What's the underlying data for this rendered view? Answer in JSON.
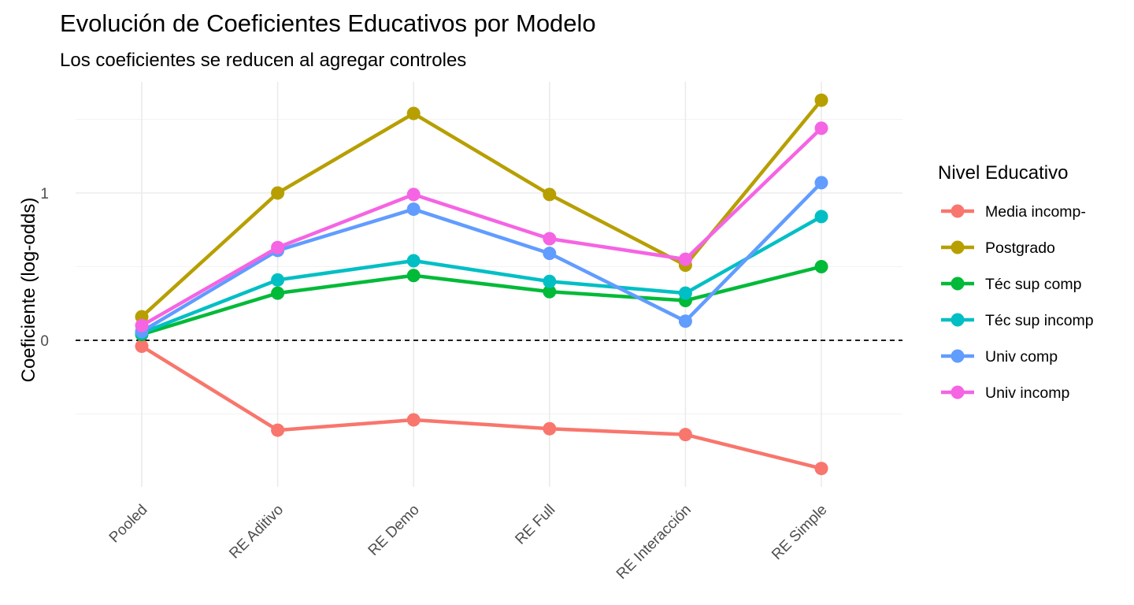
{
  "chart_data": {
    "type": "line",
    "title": "Evolución de Coeficientes Educativos por Modelo",
    "subtitle": "Los coeficientes se reducen al agregar controles",
    "xlabel": "",
    "ylabel": "Coeficiente (log-odds)",
    "categories": [
      "Pooled",
      "RE Aditivo",
      "RE Demo",
      "RE Full",
      "RE Interacción",
      "RE Simple"
    ],
    "ylim": [
      -1.0,
      1.75
    ],
    "yticks": [
      0,
      1
    ],
    "reference_line": {
      "y": 0,
      "style": "dashed"
    },
    "grid": true,
    "legend": {
      "title": "Nivel Educativo",
      "position": "right"
    },
    "series": [
      {
        "name": "Media incomp-",
        "color": "#F8766D",
        "values": [
          -0.04,
          -0.61,
          -0.54,
          -0.6,
          -0.64,
          -0.87
        ]
      },
      {
        "name": "Postgrado",
        "color": "#B79F00",
        "values": [
          0.16,
          1.0,
          1.54,
          0.99,
          0.51,
          1.63
        ]
      },
      {
        "name": "Téc sup comp",
        "color": "#00BA38",
        "values": [
          0.04,
          0.32,
          0.44,
          0.33,
          0.27,
          0.5
        ]
      },
      {
        "name": "Téc sup incomp",
        "color": "#00BFC4",
        "values": [
          0.05,
          0.41,
          0.54,
          0.4,
          0.32,
          0.84
        ]
      },
      {
        "name": "Univ comp",
        "color": "#619CFF",
        "values": [
          0.06,
          0.61,
          0.89,
          0.59,
          0.13,
          1.07
        ]
      },
      {
        "name": "Univ incomp",
        "color": "#F564E3",
        "values": [
          0.1,
          0.63,
          0.99,
          0.69,
          0.55,
          1.44
        ]
      }
    ]
  }
}
